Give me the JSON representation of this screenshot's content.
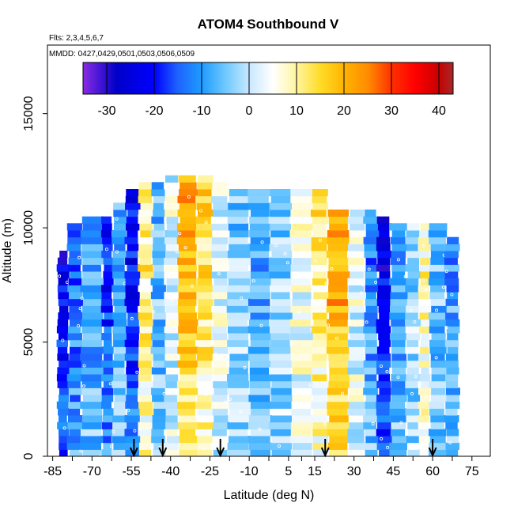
{
  "chart_data": {
    "type": "heatmap",
    "title": "ATOM4 Southbound V",
    "subtitle_flights": "Flts: 2,3,4,5,6,7",
    "subtitle_dates": "MMDD: 0427,0429,0501,0503,0506,0509",
    "xlabel": "Latitude (deg N)",
    "ylabel": "Altitude (m)",
    "xlim": [
      -87,
      82
    ],
    "ylim": [
      0,
      18000
    ],
    "x_ticks": [
      -85,
      -70,
      -55,
      -40,
      -25,
      -10,
      5,
      15,
      30,
      45,
      60,
      75
    ],
    "x_tick_labels": [
      "-85",
      "-70",
      "-55",
      "-40",
      "-25",
      "-10",
      "5",
      "15",
      "30",
      "45",
      "60",
      "75"
    ],
    "y_ticks": [
      0,
      5000,
      10000,
      15000
    ],
    "y_tick_labels": [
      "0",
      "5000",
      "10000",
      "15000"
    ],
    "colorbar": {
      "range": [
        -35,
        43
      ],
      "ticks": [
        -30,
        -20,
        -10,
        0,
        10,
        20,
        30,
        40
      ],
      "tick_labels": [
        "-30",
        "-20",
        "-10",
        "0",
        "10",
        "20",
        "30",
        "40"
      ],
      "stops": [
        {
          "v": -35,
          "color": "#8a2be2"
        },
        {
          "v": -28,
          "color": "#0000c8"
        },
        {
          "v": -20,
          "color": "#0000ff"
        },
        {
          "v": -15,
          "color": "#1e64ff"
        },
        {
          "v": -10,
          "color": "#1e9bff"
        },
        {
          "v": -5,
          "color": "#6ec8ff"
        },
        {
          "v": 0,
          "color": "#c8e8ff"
        },
        {
          "v": 5,
          "color": "#ffffff"
        },
        {
          "v": 10,
          "color": "#fff5a0"
        },
        {
          "v": 15,
          "color": "#ffdc28"
        },
        {
          "v": 20,
          "color": "#ffb400"
        },
        {
          "v": 25,
          "color": "#ff8c00"
        },
        {
          "v": 30,
          "color": "#ff3200"
        },
        {
          "v": 35,
          "color": "#ff0000"
        },
        {
          "v": 40,
          "color": "#c80000"
        },
        {
          "v": 43,
          "color": "#a52a2a"
        }
      ]
    },
    "profiles_latitude": [
      -54,
      -43,
      -21,
      19,
      60
    ],
    "wind_field_columns": [
      {
        "lat0": -83,
        "lat1": -79,
        "top": 9000,
        "v": -24
      },
      {
        "lat0": -79,
        "lat1": -74,
        "top": 10000,
        "v": -15
      },
      {
        "lat0": -74,
        "lat1": -66,
        "top": 10500,
        "v": -10
      },
      {
        "lat0": -66,
        "lat1": -62,
        "top": 10500,
        "v": -20
      },
      {
        "lat0": -62,
        "lat1": -57,
        "top": 11000,
        "v": -8
      },
      {
        "lat0": -57,
        "lat1": -52,
        "top": 11500,
        "v": -22
      },
      {
        "lat0": -52,
        "lat1": -47,
        "top": 11800,
        "v": 12
      },
      {
        "lat0": -47,
        "lat1": -42,
        "top": 11800,
        "v": -6
      },
      {
        "lat0": -42,
        "lat1": -37,
        "top": 12200,
        "v": 2
      },
      {
        "lat0": -37,
        "lat1": -30,
        "top": 12200,
        "v": 20
      },
      {
        "lat0": -30,
        "lat1": -24,
        "top": 12200,
        "v": 14
      },
      {
        "lat0": -24,
        "lat1": -18,
        "top": 12000,
        "v": 3
      },
      {
        "lat0": -18,
        "lat1": -10,
        "top": 11600,
        "v": -4
      },
      {
        "lat0": -10,
        "lat1": -2,
        "top": 11600,
        "v": -9
      },
      {
        "lat0": -2,
        "lat1": 6,
        "top": 11500,
        "v": -3
      },
      {
        "lat0": 6,
        "lat1": 14,
        "top": 11500,
        "v": 5
      },
      {
        "lat0": 14,
        "lat1": 20,
        "top": 11500,
        "v": 12
      },
      {
        "lat0": 20,
        "lat1": 28,
        "top": 10800,
        "v": 22
      },
      {
        "lat0": 28,
        "lat1": 34,
        "top": 10800,
        "v": 3
      },
      {
        "lat0": 34,
        "lat1": 39,
        "top": 10600,
        "v": -12
      },
      {
        "lat0": 39,
        "lat1": 44,
        "top": 10400,
        "v": -24
      },
      {
        "lat0": 44,
        "lat1": 50,
        "top": 10200,
        "v": -10
      },
      {
        "lat0": 50,
        "lat1": 55,
        "top": 10200,
        "v": -3
      },
      {
        "lat0": 55,
        "lat1": 59,
        "top": 10200,
        "v": 9
      },
      {
        "lat0": 59,
        "lat1": 65,
        "top": 10200,
        "v": -6
      },
      {
        "lat0": 65,
        "lat1": 70,
        "top": 9600,
        "v": -10
      }
    ]
  }
}
